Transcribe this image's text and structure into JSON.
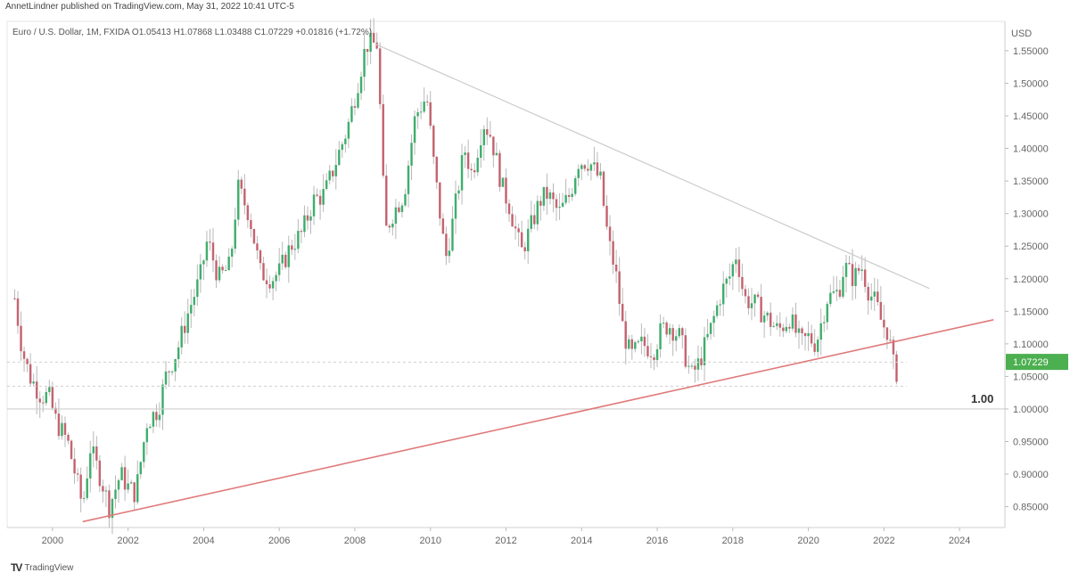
{
  "header": {
    "text": "AnnetLindner published on TradingView.com, May 31, 2022 10:41 UTC-5"
  },
  "legend": {
    "text": "Euro / U.S. Dollar, 1M, FXIDA  O1.05413  H1.07868  L1.03488  C1.07229  +0.01816 (+1.72%)"
  },
  "axis": {
    "currency": "USD"
  },
  "brand": {
    "name": "TradingView"
  },
  "colors": {
    "up": "#26a65b",
    "down": "#c0505e",
    "wick": "#b8b8b8",
    "resistance": "#cccccc",
    "support": "#e07a7a",
    "price_tag": "#4caf50",
    "grid": "#e6e6e6"
  },
  "chart_data": {
    "type": "candlestick",
    "title": "Euro / U.S. Dollar, 1M, FXIDA",
    "x_ticks": [
      "2000",
      "2002",
      "2004",
      "2006",
      "2008",
      "2010",
      "2012",
      "2014",
      "2016",
      "2018",
      "2020",
      "2022",
      "2024"
    ],
    "x_range": [
      1998.8,
      2025.2
    ],
    "y_ticks": [
      "1.55000",
      "1.50000",
      "1.45000",
      "1.40000",
      "1.35000",
      "1.30000",
      "1.25000",
      "1.20000",
      "1.15000",
      "1.10000",
      "1.05000",
      "1.00000",
      "0.95000",
      "0.90000",
      "0.85000"
    ],
    "y_range": [
      0.818,
      1.595
    ],
    "last_price": "1.07229",
    "ohlc_last": {
      "open": 1.05413,
      "high": 1.07868,
      "low": 1.03488,
      "close": 1.07229,
      "change": "+0.01816 (+1.72%)"
    },
    "price_path": [
      [
        1999.0,
        1.17
      ],
      [
        1999.2,
        1.09
      ],
      [
        1999.4,
        1.05
      ],
      [
        1999.7,
        1.02
      ],
      [
        1999.9,
        1.02
      ],
      [
        2000.1,
        0.98
      ],
      [
        2000.4,
        0.95
      ],
      [
        2000.6,
        0.9
      ],
      [
        2000.8,
        0.85
      ],
      [
        2001.0,
        0.94
      ],
      [
        2001.3,
        0.89
      ],
      [
        2001.5,
        0.85
      ],
      [
        2001.8,
        0.9
      ],
      [
        2002.0,
        0.88
      ],
      [
        2002.2,
        0.87
      ],
      [
        2002.5,
        0.98
      ],
      [
        2002.8,
        1.0
      ],
      [
        2003.0,
        1.05
      ],
      [
        2003.3,
        1.09
      ],
      [
        2003.6,
        1.15
      ],
      [
        2003.9,
        1.2
      ],
      [
        2004.1,
        1.26
      ],
      [
        2004.4,
        1.2
      ],
      [
        2004.7,
        1.22
      ],
      [
        2004.9,
        1.34
      ],
      [
        2005.2,
        1.3
      ],
      [
        2005.5,
        1.21
      ],
      [
        2005.8,
        1.2
      ],
      [
        2006.0,
        1.21
      ],
      [
        2006.3,
        1.25
      ],
      [
        2006.6,
        1.27
      ],
      [
        2006.9,
        1.32
      ],
      [
        2007.2,
        1.33
      ],
      [
        2007.5,
        1.38
      ],
      [
        2007.8,
        1.43
      ],
      [
        2008.0,
        1.48
      ],
      [
        2008.3,
        1.56
      ],
      [
        2008.6,
        1.56
      ],
      [
        2008.8,
        1.27
      ],
      [
        2009.0,
        1.3
      ],
      [
        2009.3,
        1.33
      ],
      [
        2009.6,
        1.45
      ],
      [
        2009.9,
        1.48
      ],
      [
        2010.1,
        1.37
      ],
      [
        2010.4,
        1.23
      ],
      [
        2010.6,
        1.29
      ],
      [
        2010.9,
        1.4
      ],
      [
        2011.1,
        1.36
      ],
      [
        2011.4,
        1.44
      ],
      [
        2011.6,
        1.42
      ],
      [
        2011.9,
        1.34
      ],
      [
        2012.1,
        1.31
      ],
      [
        2012.4,
        1.24
      ],
      [
        2012.6,
        1.27
      ],
      [
        2012.9,
        1.32
      ],
      [
        2013.1,
        1.33
      ],
      [
        2013.4,
        1.3
      ],
      [
        2013.7,
        1.33
      ],
      [
        2013.9,
        1.38
      ],
      [
        2014.2,
        1.38
      ],
      [
        2014.5,
        1.35
      ],
      [
        2014.7,
        1.26
      ],
      [
        2014.9,
        1.21
      ],
      [
        2015.1,
        1.12
      ],
      [
        2015.3,
        1.08
      ],
      [
        2015.6,
        1.1
      ],
      [
        2015.9,
        1.09
      ],
      [
        2016.1,
        1.12
      ],
      [
        2016.3,
        1.13
      ],
      [
        2016.6,
        1.11
      ],
      [
        2016.9,
        1.05
      ],
      [
        2017.1,
        1.07
      ],
      [
        2017.4,
        1.12
      ],
      [
        2017.7,
        1.18
      ],
      [
        2017.9,
        1.2
      ],
      [
        2018.1,
        1.24
      ],
      [
        2018.3,
        1.17
      ],
      [
        2018.6,
        1.16
      ],
      [
        2018.9,
        1.14
      ],
      [
        2019.2,
        1.12
      ],
      [
        2019.5,
        1.14
      ],
      [
        2019.8,
        1.1
      ],
      [
        2020.0,
        1.11
      ],
      [
        2020.2,
        1.1
      ],
      [
        2020.5,
        1.17
      ],
      [
        2020.8,
        1.18
      ],
      [
        2020.95,
        1.22
      ],
      [
        2021.2,
        1.2
      ],
      [
        2021.4,
        1.22
      ],
      [
        2021.6,
        1.18
      ],
      [
        2021.8,
        1.16
      ],
      [
        2021.95,
        1.13
      ],
      [
        2022.1,
        1.12
      ],
      [
        2022.3,
        1.05
      ],
      [
        2022.4,
        1.07
      ]
    ],
    "trendlines": [
      {
        "name": "resistance",
        "from": [
          2008.55,
          1.56
        ],
        "to": [
          2023.2,
          1.185
        ]
      },
      {
        "name": "support",
        "from": [
          2000.8,
          0.827
        ],
        "to": [
          2024.9,
          1.137
        ]
      }
    ],
    "horizontal_lines": [
      {
        "name": "parity",
        "y": 1.0,
        "label": "1.00"
      },
      {
        "name": "dashed-upper",
        "y": 1.072
      },
      {
        "name": "dashed-lower",
        "y": 1.035
      }
    ]
  }
}
